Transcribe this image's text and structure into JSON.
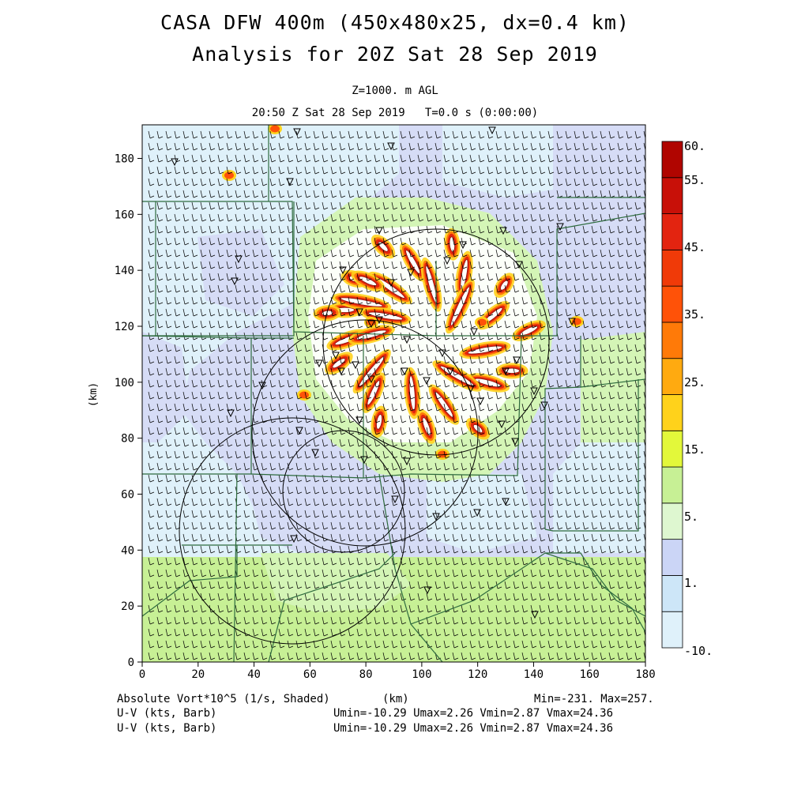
{
  "title": {
    "line1": "CASA DFW 400m (450x480x25, dx=0.4 km)",
    "line2": "Analysis for 20Z Sat 28 Sep 2019"
  },
  "subtitle": {
    "level": "Z=1000. m AGL",
    "time": "20:50 Z Sat 28 Sep 2019   T=0.0 s (0:00:00)"
  },
  "axes": {
    "xlabel": "(km)",
    "ylabel": "(km)",
    "xticks": [
      "0",
      "20",
      "40",
      "60",
      "80",
      "100",
      "120",
      "140",
      "160",
      "180"
    ],
    "yticks": [
      "0",
      "20",
      "40",
      "60",
      "80",
      "100",
      "120",
      "140",
      "160",
      "180"
    ],
    "xlim": [
      0,
      180
    ],
    "ylim": [
      0,
      192
    ]
  },
  "colorbar": {
    "labels": [
      "60.",
      "55.",
      "45.",
      "35.",
      "25.",
      "15.",
      "5.",
      "1.",
      "-10."
    ],
    "colors": [
      "#dff1fa",
      "#cde6f8",
      "#cbd5f6",
      "#def7d0",
      "#c7f095",
      "#e3f83a",
      "#ffd21b",
      "#ffaa10",
      "#ff7a08",
      "#ff5208",
      "#f03a08",
      "#e32410",
      "#c81008",
      "#b00500"
    ]
  },
  "footer": {
    "field1": "Absolute Vort*10^5 (1/s, Shaded)",
    "xunit": "(km)",
    "minmax": "Min=-231. Max=257.",
    "field2": "U-V (kts, Barb)",
    "stats2": "Umin=-10.29 Umax=2.26 Vmin=2.87 Vmax=24.36",
    "field3": "U-V (kts, Barb)",
    "stats3": "Umin=-10.29 Umax=2.26 Vmin=2.87 Vmax=24.36"
  },
  "colors": {
    "background_blue": "#dff1fa",
    "light_green": "#d4f5b6",
    "green": "#c7f095",
    "lavender": "#d6dcf6",
    "county_lines": "#2e6b3e",
    "radar_rings": "#000000"
  }
}
